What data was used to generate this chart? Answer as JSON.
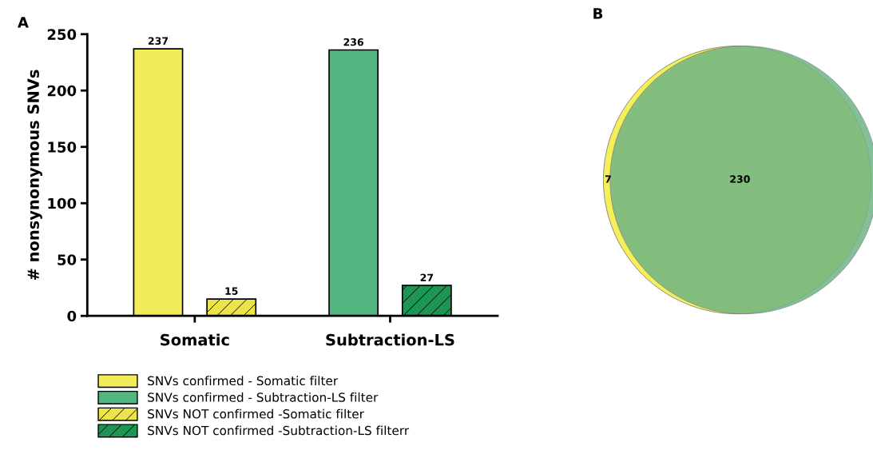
{
  "chart_data": [
    {
      "type": "bar",
      "title": "A",
      "ylabel": "# nonsynonymous SNVs",
      "categories": [
        "Somatic",
        "Subtraction-LS"
      ],
      "series": [
        {
          "name": "SNVs confirmed - Somatic filter",
          "color": "#f0ec5a",
          "values": [
            237,
            null
          ]
        },
        {
          "name": "SNVs confirmed - Subtraction-LS filter",
          "color": "#52b57f",
          "values": [
            null,
            236
          ]
        },
        {
          "name": "SNVs NOT confirmed -Somatic filter",
          "color": "#ece44a",
          "values": [
            15,
            null
          ]
        },
        {
          "name": "SNVs NOT confirmed -Subtraction-LS filterr",
          "color": "#1e9455",
          "values": [
            null,
            27
          ]
        }
      ],
      "ylim": [
        0,
        250
      ],
      "yticks": [
        0,
        50,
        100,
        150,
        200,
        250
      ],
      "data_labels": true,
      "legend": "bottom",
      "grid": false
    },
    {
      "type": "other",
      "title": "B",
      "annotations": [
        "7",
        "230"
      ],
      "colors": [
        "#f5f05a",
        "#6fb585"
      ]
    }
  ]
}
